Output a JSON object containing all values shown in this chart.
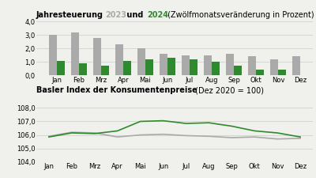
{
  "title_bold": "Jahresteuerung ",
  "title_2023": "2023",
  "title_mid": " und ",
  "title_2024": "2024",
  "title_rest": " (Zwölfmonatsveränderung in Prozent)",
  "color_2023": "#aaaaaa",
  "color_2024": "#2d8b2d",
  "months": [
    "Jan",
    "Feb",
    "Mrz",
    "Apr",
    "Mai",
    "Jun",
    "Jul",
    "Aug",
    "Sep",
    "Okt",
    "Nov",
    "Dez"
  ],
  "bar_2023": [
    3.0,
    3.2,
    2.8,
    2.3,
    2.0,
    1.6,
    1.5,
    1.5,
    1.6,
    1.4,
    1.2,
    1.4
  ],
  "bar_2024": [
    1.1,
    0.9,
    0.75,
    1.05,
    1.2,
    1.3,
    1.2,
    1.0,
    0.75,
    0.45,
    0.45,
    null
  ],
  "bar_ylim": [
    0,
    4.0
  ],
  "bar_yticks": [
    0.0,
    1.0,
    2.0,
    3.0,
    4.0
  ],
  "bar_ytick_labels": [
    "0,0",
    "1,0",
    "2,0",
    "3,0",
    "4,0"
  ],
  "title2_bold": "Basler Index der Konsumentenpreise",
  "title2_rest": " (Dez 2020 = 100)",
  "line_2023": [
    105.9,
    106.2,
    106.15,
    105.85,
    106.0,
    106.05,
    105.95,
    105.9,
    105.8,
    105.85,
    105.7,
    105.75
  ],
  "line_2024": [
    105.85,
    106.15,
    106.1,
    106.3,
    107.0,
    107.05,
    106.85,
    106.9,
    106.65,
    106.3,
    106.15,
    105.85
  ],
  "line_ylim": [
    104.0,
    108.0
  ],
  "line_yticks": [
    104.0,
    105.0,
    106.0,
    107.0,
    108.0
  ],
  "line_ytick_labels": [
    "104,0",
    "105,0",
    "106,0",
    "107,0",
    "108,0"
  ],
  "background_color": "#f0f0ec",
  "grid_color": "#cccccc",
  "title_fontsize": 7.0,
  "axis_fontsize": 6.0,
  "bar_width": 0.35
}
